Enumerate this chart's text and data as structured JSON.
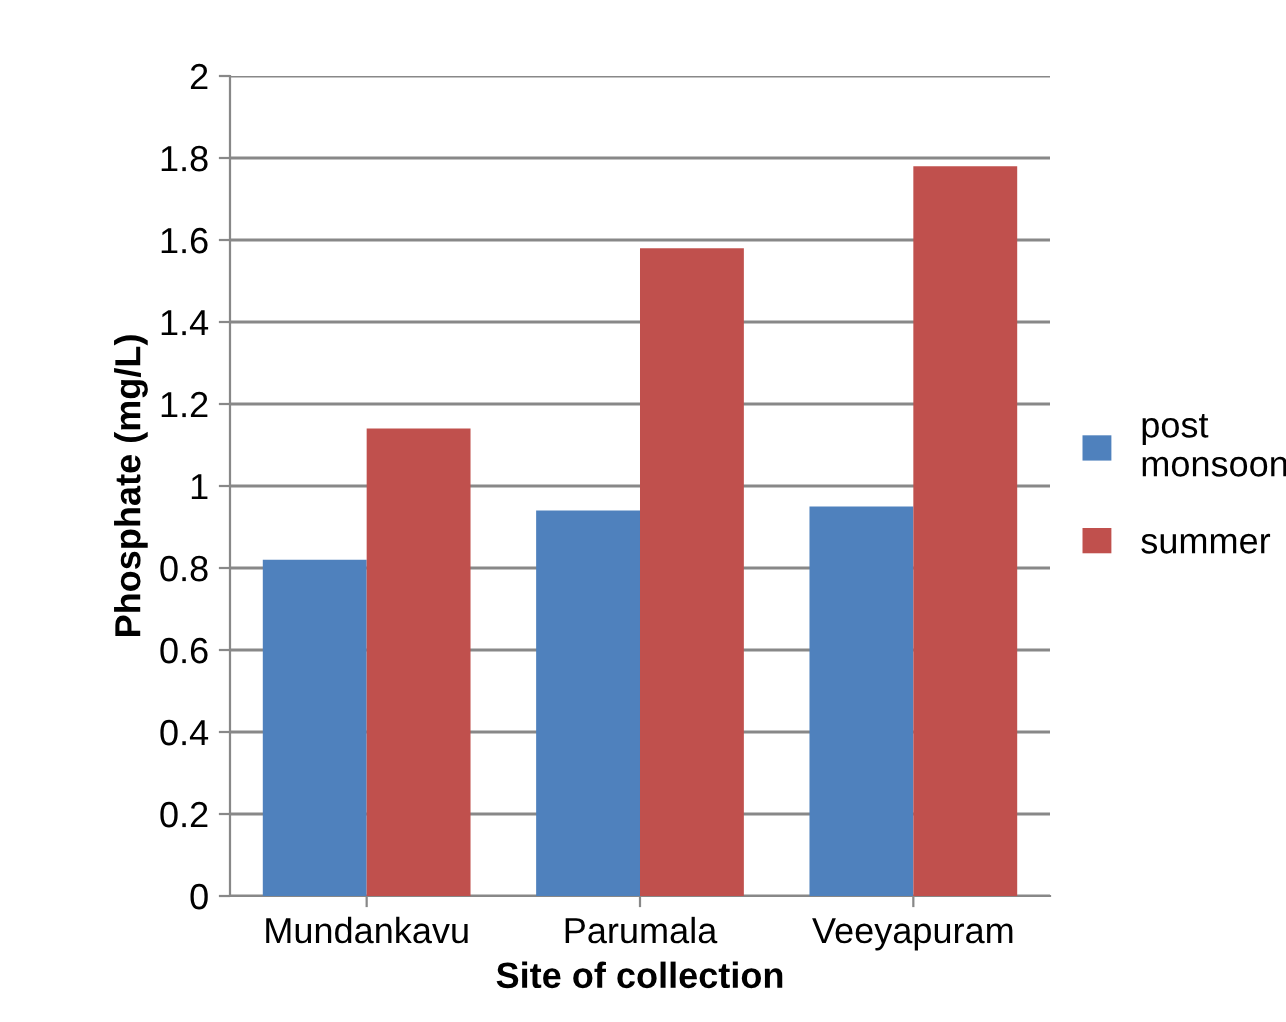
{
  "chart_data": {
    "type": "bar",
    "xlabel": "Site of collection",
    "ylabel": "Phosphate (mg/L)",
    "categories": [
      "Mundankavu",
      "Parumala",
      "Veeyapuram"
    ],
    "series": [
      {
        "name": "post monsoon",
        "color": "#4f81bd",
        "values": [
          0.82,
          0.94,
          0.95
        ]
      },
      {
        "name": "summer",
        "color": "#c0504d",
        "values": [
          1.14,
          1.58,
          1.78
        ]
      }
    ],
    "ylim": [
      0,
      2
    ],
    "yticks": [
      0,
      0.2,
      0.4,
      0.6,
      0.8,
      1,
      1.2,
      1.4,
      1.6,
      1.8,
      2
    ],
    "grid": "y",
    "legend": "right"
  }
}
